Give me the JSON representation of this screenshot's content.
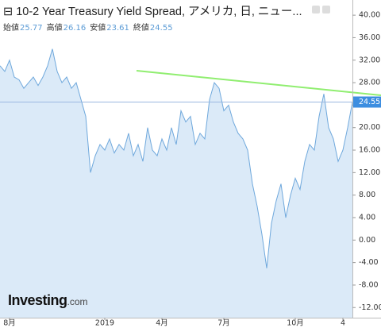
{
  "chart_data": {
    "type": "area",
    "title": "10-2 Year Treasury Yield Spread, アメリカ, 日, ニュー...",
    "ohlc": [
      {
        "label": "始値",
        "value": 25.77
      },
      {
        "label": "高値",
        "value": 26.16
      },
      {
        "label": "安値",
        "value": 23.61
      },
      {
        "label": "終値",
        "value": 24.55
      }
    ],
    "logo": {
      "brand": "Investing",
      "suffix": ".com"
    },
    "categories": [
      null,
      null,
      "8月",
      null,
      null,
      null,
      null,
      null,
      null,
      null,
      null,
      null,
      null,
      null,
      null,
      null,
      null,
      null,
      null,
      null,
      null,
      null,
      "2019",
      null,
      null,
      null,
      null,
      null,
      null,
      null,
      null,
      null,
      null,
      null,
      "4月",
      null,
      null,
      null,
      null,
      null,
      null,
      null,
      null,
      null,
      null,
      null,
      null,
      "7月",
      null,
      null,
      null,
      null,
      null,
      null,
      null,
      null,
      null,
      null,
      null,
      null,
      null,
      null,
      "10月",
      null,
      null,
      null,
      null,
      null,
      null,
      null,
      null,
      null,
      "4",
      null,
      null
    ],
    "values": [
      31,
      30,
      32,
      29,
      28.5,
      27,
      28,
      29,
      27.5,
      29,
      31,
      34,
      30,
      28,
      29,
      27,
      28,
      25,
      22,
      12,
      15,
      17,
      16,
      18,
      15.5,
      17,
      16,
      19,
      15,
      17,
      14,
      20,
      16,
      15,
      18,
      16,
      20,
      17,
      23,
      21,
      22,
      17,
      19,
      18,
      25,
      28,
      27,
      23,
      24,
      21,
      19,
      18,
      16,
      10,
      6,
      1,
      -5,
      3,
      7,
      10,
      4,
      8,
      11,
      9,
      14,
      17,
      16,
      22,
      26,
      20,
      18,
      14,
      16,
      20,
      24.55
    ],
    "color": "#6fa8dc",
    "fill": "#dbeaf8",
    "ylim": [
      -13.8,
      42.7
    ],
    "yticks": [
      {
        "value": 40,
        "label": "40.00"
      },
      {
        "value": 36,
        "label": "36.00"
      },
      {
        "value": 32,
        "label": "32.00"
      },
      {
        "value": 28,
        "label": "28.00"
      },
      {
        "value": 24,
        "label": "24.00"
      },
      {
        "value": 20,
        "label": "20.00"
      },
      {
        "value": 16,
        "label": "16.00"
      },
      {
        "value": 12,
        "label": "12.00"
      },
      {
        "value": 8,
        "label": "8.00"
      },
      {
        "value": 4,
        "label": "4.00"
      },
      {
        "value": 0,
        "label": "0.00"
      },
      {
        "value": -4,
        "label": "-4.00"
      },
      {
        "value": -8,
        "label": "-8.00"
      },
      {
        "value": -12,
        "label": "-12.00"
      }
    ]
  }
}
